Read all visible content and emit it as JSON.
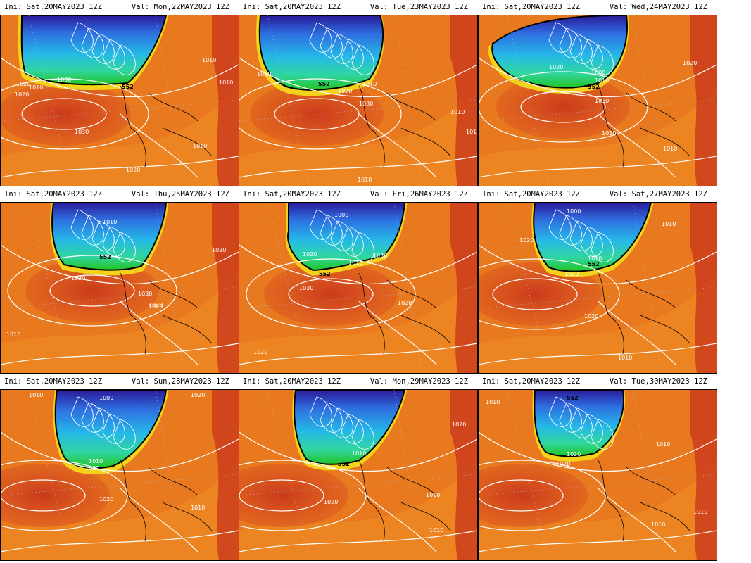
{
  "init_time": "Ini: Sat,20MAY2023 12Z",
  "panels": [
    {
      "valid": "Val: Mon,22MAY2023 12Z",
      "labels": [
        "1020",
        "1010",
        "1000",
        "552",
        "1020",
        "1030",
        "1010",
        "1010",
        "1020",
        "1010"
      ]
    },
    {
      "valid": "Val: Tue,23MAY2023 12Z",
      "labels": [
        "1030",
        "552",
        "1020",
        "1010",
        "1030",
        "1010",
        "1010",
        "1010"
      ]
    },
    {
      "valid": "Val: Wed,24MAY2023 12Z",
      "labels": [
        "1020",
        "1000",
        "1010",
        "552",
        "1030",
        "1020",
        "1010",
        "1020"
      ]
    },
    {
      "valid": "Val: Thu,25MAY2023 12Z",
      "labels": [
        "1010",
        "552",
        "1020",
        "1020",
        "1030",
        "1020",
        "1020",
        "1010"
      ]
    },
    {
      "valid": "Val: Fri,26MAY2023 12Z",
      "labels": [
        "1000",
        "1020",
        "1010",
        "552",
        "1030",
        "1030",
        "1020",
        "1020"
      ]
    },
    {
      "valid": "Val: Sat,27MAY2023 12Z",
      "labels": [
        "1000",
        "1020",
        "1010",
        "552",
        "1020",
        "1020",
        "1010",
        "1010"
      ]
    },
    {
      "valid": "Val: Sun,28MAY2023 12Z",
      "labels": [
        "1010",
        "1000",
        "1020",
        "1010",
        "1020",
        "1020",
        "1010"
      ]
    },
    {
      "valid": "Val: Mon,29MAY2023 12Z",
      "labels": [
        "552",
        "1010",
        "1020",
        "1020",
        "1010",
        "1010"
      ]
    },
    {
      "valid": "Val: Tue,30MAY2023 12Z",
      "labels": [
        "1010",
        "552",
        "1020",
        "1020",
        "1010",
        "1010",
        "1010"
      ]
    }
  ]
}
